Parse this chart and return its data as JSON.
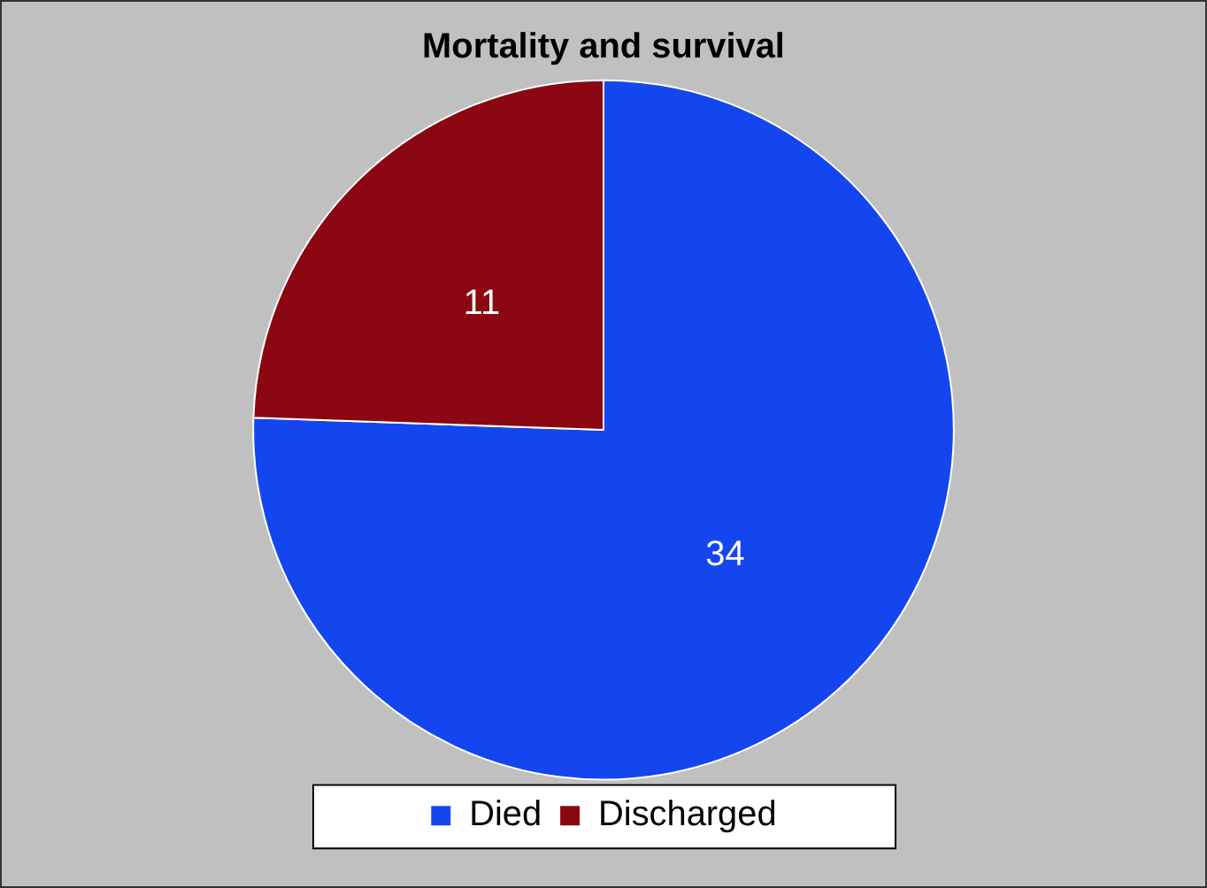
{
  "chart_data": {
    "type": "pie",
    "title": "Mortality and survival",
    "categories": [
      "Died",
      "Discharged"
    ],
    "values": [
      34,
      11
    ],
    "colors": [
      "#1446f0",
      "#8b0712"
    ],
    "data_labels": true,
    "legend": "bottom"
  }
}
